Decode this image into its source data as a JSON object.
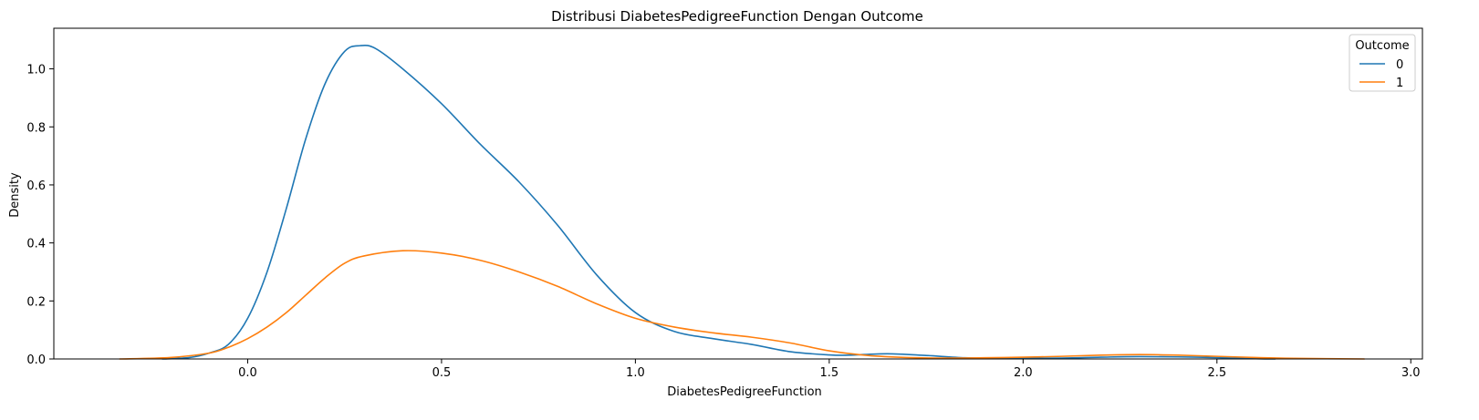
{
  "chart_data": {
    "type": "line",
    "title": "Distribusi DiabetesPedigreeFunction Dengan Outcome",
    "xlabel": "DiabetesPedigreeFunction",
    "ylabel": "Density",
    "xlim": [
      -0.5,
      3.03
    ],
    "ylim": [
      0,
      1.14
    ],
    "xticks": [
      0.0,
      0.5,
      1.0,
      1.5,
      2.0,
      2.5,
      3.0
    ],
    "xtick_labels": [
      "0.0",
      "0.5",
      "1.0",
      "1.5",
      "2.0",
      "2.5",
      "3.0"
    ],
    "yticks": [
      0.0,
      0.2,
      0.4,
      0.6,
      0.8,
      1.0
    ],
    "ytick_labels": [
      "0.0",
      "0.2",
      "0.4",
      "0.6",
      "0.8",
      "1.0"
    ],
    "grid": false,
    "legend": {
      "title": "Outcome",
      "placement": "top-right"
    },
    "series": [
      {
        "name": "0",
        "color": "#1f77b4",
        "points": [
          [
            -0.22,
            0.0
          ],
          [
            -0.15,
            0.005
          ],
          [
            -0.1,
            0.02
          ],
          [
            -0.05,
            0.05
          ],
          [
            0.0,
            0.14
          ],
          [
            0.05,
            0.3
          ],
          [
            0.1,
            0.52
          ],
          [
            0.15,
            0.76
          ],
          [
            0.2,
            0.95
          ],
          [
            0.25,
            1.06
          ],
          [
            0.29,
            1.08
          ],
          [
            0.33,
            1.07
          ],
          [
            0.4,
            1.0
          ],
          [
            0.5,
            0.88
          ],
          [
            0.6,
            0.74
          ],
          [
            0.7,
            0.61
          ],
          [
            0.8,
            0.46
          ],
          [
            0.9,
            0.29
          ],
          [
            1.0,
            0.16
          ],
          [
            1.1,
            0.095
          ],
          [
            1.2,
            0.07
          ],
          [
            1.3,
            0.05
          ],
          [
            1.4,
            0.025
          ],
          [
            1.5,
            0.014
          ],
          [
            1.55,
            0.013
          ],
          [
            1.65,
            0.018
          ],
          [
            1.75,
            0.012
          ],
          [
            1.85,
            0.004
          ],
          [
            1.95,
            0.002
          ],
          [
            2.1,
            0.003
          ],
          [
            2.2,
            0.006
          ],
          [
            2.3,
            0.008
          ],
          [
            2.45,
            0.006
          ],
          [
            2.6,
            0.001
          ],
          [
            2.65,
            0.0
          ]
        ]
      },
      {
        "name": "1",
        "color": "#ff7f0e",
        "points": [
          [
            -0.33,
            0.0
          ],
          [
            -0.2,
            0.005
          ],
          [
            -0.1,
            0.02
          ],
          [
            -0.05,
            0.04
          ],
          [
            0.0,
            0.07
          ],
          [
            0.05,
            0.11
          ],
          [
            0.1,
            0.16
          ],
          [
            0.15,
            0.22
          ],
          [
            0.2,
            0.28
          ],
          [
            0.25,
            0.33
          ],
          [
            0.3,
            0.355
          ],
          [
            0.4,
            0.373
          ],
          [
            0.5,
            0.365
          ],
          [
            0.6,
            0.34
          ],
          [
            0.7,
            0.3
          ],
          [
            0.8,
            0.25
          ],
          [
            0.9,
            0.19
          ],
          [
            1.0,
            0.14
          ],
          [
            1.1,
            0.11
          ],
          [
            1.2,
            0.09
          ],
          [
            1.3,
            0.075
          ],
          [
            1.4,
            0.055
          ],
          [
            1.5,
            0.028
          ],
          [
            1.6,
            0.012
          ],
          [
            1.7,
            0.005
          ],
          [
            1.8,
            0.003
          ],
          [
            1.9,
            0.004
          ],
          [
            2.0,
            0.006
          ],
          [
            2.1,
            0.009
          ],
          [
            2.2,
            0.013
          ],
          [
            2.3,
            0.015
          ],
          [
            2.4,
            0.013
          ],
          [
            2.5,
            0.009
          ],
          [
            2.6,
            0.005
          ],
          [
            2.7,
            0.002
          ],
          [
            2.88,
            0.0
          ]
        ]
      }
    ]
  }
}
